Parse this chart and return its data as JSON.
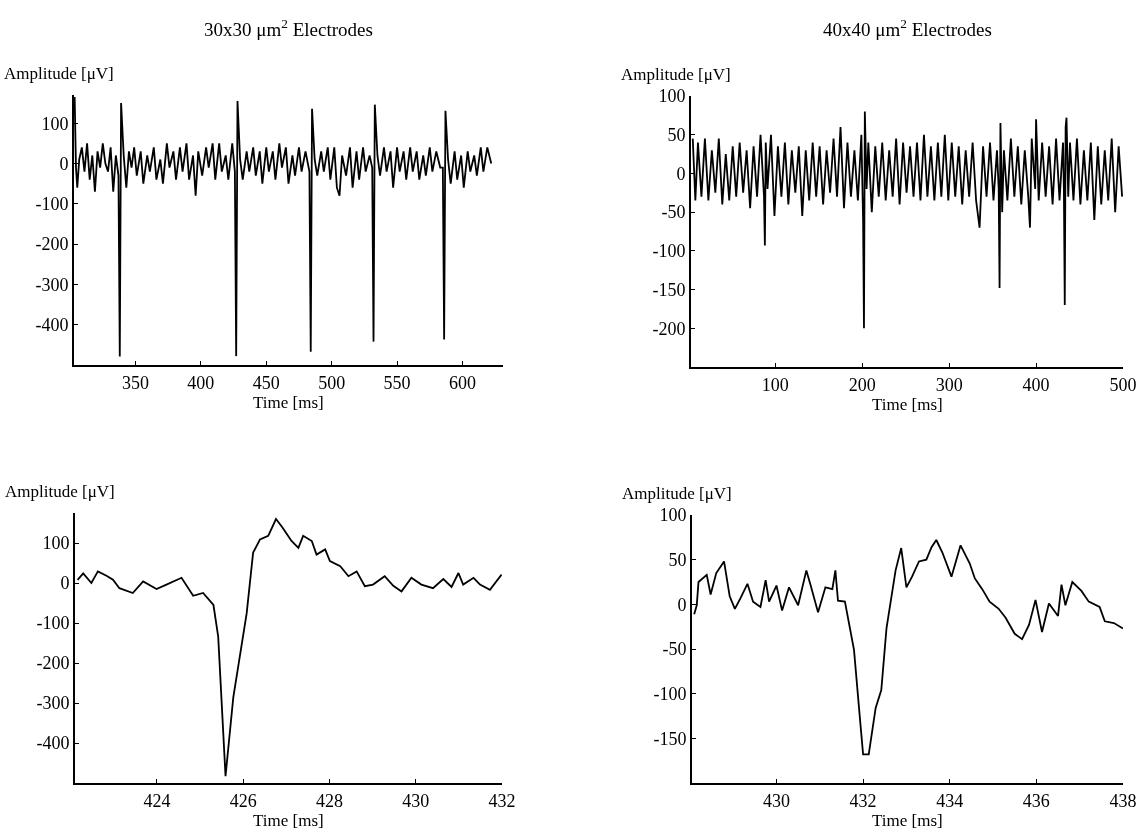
{
  "chart_data": [
    {
      "type": "line",
      "title": "30x30 μm$^{2}$ Electrodes",
      "xlabel": "Time [ms]",
      "ylabel": "Amplitude [μV]",
      "xlim": [
        303,
        631
      ],
      "ylim": [
        -500,
        170
      ],
      "xticks": [
        350,
        400,
        450,
        500,
        550,
        600
      ],
      "yticks": [
        100,
        0,
        -100,
        -200,
        -300,
        -400
      ],
      "color": "#000000",
      "x": [
        303.5,
        304.5,
        305.5,
        307,
        309,
        311,
        313,
        315,
        317,
        319,
        321,
        323,
        325,
        327,
        329,
        331,
        333,
        335,
        337,
        338,
        339,
        341,
        343,
        345,
        347,
        349,
        351,
        354,
        356,
        359,
        361,
        364,
        366,
        369,
        371,
        374,
        376,
        379,
        381,
        384,
        386,
        389,
        391,
        394,
        396,
        398,
        401,
        404,
        406,
        409,
        411,
        414,
        416,
        419,
        421,
        424,
        426,
        427,
        428,
        430,
        432,
        435,
        437,
        440,
        442,
        445,
        447,
        450,
        452,
        455,
        457,
        460,
        462,
        465,
        467,
        470,
        472,
        475,
        477,
        480,
        483,
        484,
        485,
        487,
        489,
        492,
        494,
        497,
        499,
        502,
        504,
        506,
        508,
        511,
        514,
        516,
        519,
        521,
        524,
        526,
        529,
        531,
        532,
        533,
        535,
        537,
        540,
        542,
        545,
        547,
        550,
        552,
        555,
        557,
        560,
        562,
        565,
        567,
        570,
        572,
        575,
        577,
        580,
        583,
        585,
        586,
        587,
        589,
        591,
        594,
        596,
        599,
        601,
        604,
        606,
        609,
        611,
        614,
        616,
        619,
        622
      ],
      "values": [
        165,
        -10,
        -60,
        10,
        40,
        -20,
        50,
        -40,
        20,
        -70,
        30,
        -10,
        50,
        0,
        -20,
        40,
        -70,
        20,
        -30,
        -479,
        150,
        20,
        -60,
        30,
        -10,
        40,
        -30,
        30,
        -50,
        20,
        -20,
        40,
        -40,
        10,
        -50,
        50,
        -10,
        30,
        -40,
        40,
        -20,
        50,
        -40,
        20,
        -80,
        30,
        -30,
        40,
        -10,
        50,
        -40,
        50,
        -20,
        20,
        -40,
        50,
        -20,
        -478,
        155,
        10,
        -40,
        30,
        -20,
        40,
        -30,
        30,
        -50,
        40,
        -20,
        30,
        -40,
        50,
        -10,
        40,
        -50,
        20,
        -30,
        40,
        -20,
        30,
        -20,
        -467,
        136,
        10,
        -30,
        30,
        -20,
        40,
        -40,
        40,
        -60,
        -80,
        20,
        -30,
        40,
        -60,
        30,
        -40,
        40,
        -20,
        20,
        -10,
        -442,
        146,
        20,
        -30,
        40,
        -20,
        30,
        -60,
        40,
        -20,
        30,
        -40,
        40,
        -20,
        30,
        -40,
        20,
        -30,
        40,
        -20,
        30,
        -10,
        -10,
        -437,
        131,
        10,
        -50,
        30,
        -40,
        20,
        -60,
        30,
        -20,
        20,
        -30,
        40,
        -20,
        40,
        0
      ]
    },
    {
      "type": "line",
      "title": "40x40 μm$^{2}$ Electrodes",
      "xlabel": "Time [ms]",
      "ylabel": "Amplitude [μV]",
      "xlim": [
        3,
        500
      ],
      "ylim": [
        -250,
        100
      ],
      "xticks": [
        100,
        200,
        300,
        400,
        500
      ],
      "yticks": [
        100,
        50,
        0,
        -50,
        -100,
        -150,
        -200
      ],
      "color": "#000000",
      "x": [
        5,
        8,
        11,
        15,
        19,
        23,
        27,
        31,
        35,
        39,
        43,
        47,
        51,
        55,
        59,
        63,
        67,
        71,
        75,
        79,
        83,
        87,
        88,
        89,
        91,
        95,
        99,
        103,
        107,
        111,
        115,
        119,
        123,
        127,
        131,
        135,
        139,
        143,
        147,
        151,
        155,
        159,
        163,
        167,
        171,
        175,
        179,
        183,
        187,
        191,
        195,
        199,
        201,
        202,
        203,
        205,
        207,
        211,
        215,
        219,
        223,
        227,
        231,
        235,
        239,
        243,
        247,
        251,
        255,
        259,
        263,
        267,
        271,
        275,
        279,
        283,
        287,
        291,
        295,
        299,
        303,
        307,
        311,
        315,
        319,
        323,
        327,
        331,
        335,
        339,
        343,
        347,
        351,
        355,
        357,
        358,
        359,
        361,
        363,
        367,
        371,
        375,
        379,
        383,
        387,
        391,
        393,
        395,
        399,
        400,
        403,
        407,
        411,
        415,
        419,
        423,
        427,
        431,
        432,
        433,
        434,
        435,
        437,
        439,
        443,
        447,
        451,
        455,
        459,
        463,
        467,
        471,
        475,
        479,
        483,
        487,
        491,
        495,
        499
      ],
      "values": [
        45,
        -35,
        40,
        -30,
        45,
        -35,
        30,
        -25,
        45,
        -40,
        25,
        -35,
        35,
        -30,
        40,
        -25,
        30,
        -45,
        35,
        -30,
        50,
        -30,
        -93,
        40,
        -20,
        50,
        -55,
        35,
        -30,
        40,
        -40,
        30,
        -25,
        35,
        -55,
        30,
        -35,
        40,
        -30,
        35,
        -40,
        30,
        -25,
        45,
        -30,
        60,
        -45,
        40,
        -30,
        30,
        -35,
        50,
        -60,
        -200,
        80,
        -20,
        40,
        -50,
        35,
        -30,
        40,
        -35,
        30,
        -30,
        45,
        -40,
        40,
        -25,
        35,
        -30,
        40,
        -35,
        50,
        -30,
        35,
        -35,
        40,
        -30,
        50,
        -35,
        40,
        -30,
        35,
        -40,
        30,
        -30,
        40,
        -35,
        -70,
        35,
        -30,
        40,
        -35,
        30,
        -20,
        -148,
        65,
        -50,
        30,
        -35,
        45,
        -30,
        35,
        -40,
        30,
        -30,
        -70,
        45,
        -20,
        70,
        -35,
        40,
        -30,
        35,
        -40,
        45,
        -35,
        40,
        -20,
        -170,
        60,
        72,
        -30,
        40,
        -35,
        45,
        -40,
        30,
        -35,
        40,
        -60,
        35,
        -40,
        30,
        -35,
        45,
        -50,
        35,
        -30
      ]
    },
    {
      "type": "line",
      "xlabel": "Time [ms]",
      "ylabel": "Amplitude [μV]",
      "xlim": [
        422.1,
        432
      ],
      "ylim": [
        -500,
        175
      ],
      "xticks": [
        424,
        426,
        428,
        430,
        432
      ],
      "yticks": [
        100,
        0,
        -100,
        -200,
        -300,
        -400
      ],
      "color": "#000000",
      "x": [
        422.16,
        422.29,
        422.48,
        422.63,
        422.83,
        422.98,
        423.13,
        423.44,
        423.68,
        423.99,
        424.22,
        424.57,
        424.84,
        425.07,
        425.31,
        425.42,
        425.59,
        425.77,
        426.08,
        426.23,
        426.39,
        426.58,
        426.76,
        426.91,
        427.12,
        427.28,
        427.39,
        427.59,
        427.7,
        427.9,
        428.01,
        428.25,
        428.44,
        428.63,
        428.82,
        429.01,
        429.28,
        429.48,
        429.67,
        429.9,
        430.13,
        430.4,
        430.64,
        430.83,
        430.99,
        431.1,
        431.34,
        431.49,
        431.72,
        431.99
      ],
      "values": [
        8,
        24,
        0,
        29,
        18,
        8,
        -13,
        -25,
        4,
        -15,
        -4,
        13,
        -32,
        -25,
        -55,
        -134,
        -483,
        -286,
        -76,
        76,
        109,
        118,
        160,
        139,
        105,
        88,
        118,
        105,
        71,
        84,
        55,
        42,
        17,
        29,
        -8,
        -4,
        17,
        -7,
        -21,
        13,
        -4,
        -13,
        10,
        -10,
        25,
        -4,
        13,
        -4,
        -17,
        21
      ]
    },
    {
      "type": "line",
      "xlabel": "Time [ms]",
      "ylabel": "Amplitude [μV]",
      "xlim": [
        428.05,
        438
      ],
      "ylim": [
        -200,
        100
      ],
      "xticks": [
        430,
        432,
        434,
        436,
        438
      ],
      "yticks": [
        100,
        50,
        0,
        -50,
        -100,
        -150
      ],
      "color": "#000000",
      "x": [
        428.1,
        428.16,
        428.2,
        428.39,
        428.48,
        428.61,
        428.79,
        428.92,
        429.04,
        429.17,
        429.33,
        429.46,
        429.63,
        429.75,
        429.83,
        430.0,
        430.13,
        430.29,
        430.5,
        430.69,
        430.79,
        430.96,
        431.13,
        431.29,
        431.36,
        431.42,
        431.58,
        431.79,
        431.92,
        432.0,
        432.13,
        432.29,
        432.42,
        432.54,
        432.75,
        432.88,
        433.0,
        433.13,
        433.29,
        433.46,
        433.58,
        433.69,
        433.83,
        434.04,
        434.25,
        434.46,
        434.58,
        434.75,
        434.92,
        435.13,
        435.29,
        435.5,
        435.67,
        435.83,
        435.98,
        436.13,
        436.29,
        436.5,
        436.58,
        436.67,
        436.83,
        437.04,
        437.21,
        437.46,
        437.58,
        437.79,
        438.0
      ],
      "values": [
        -11,
        -1,
        25,
        33,
        11,
        35,
        48,
        9,
        -5,
        7,
        23,
        3,
        -3,
        27,
        3,
        21,
        -7,
        19,
        -1,
        38,
        21,
        -9,
        19,
        17,
        38,
        4,
        3,
        -51,
        -124,
        -168,
        -168,
        -116,
        -96,
        -27,
        38,
        63,
        19,
        31,
        48,
        50,
        64,
        72,
        58,
        31,
        66,
        46,
        29,
        17,
        3,
        -5,
        -15,
        -33,
        -39,
        -23,
        5,
        -31,
        1,
        -13,
        22,
        -1,
        25,
        15,
        3,
        -3,
        -19,
        -21,
        -27
      ]
    }
  ]
}
